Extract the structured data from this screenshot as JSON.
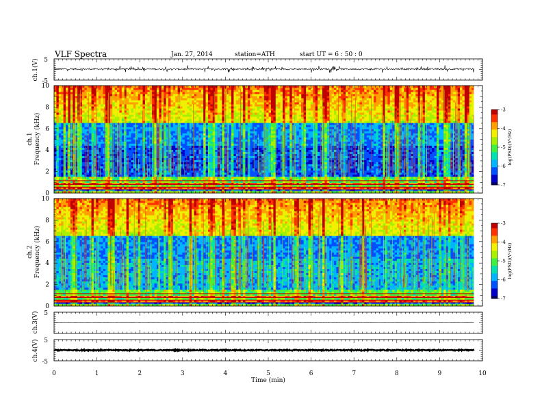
{
  "header": {
    "title": "VLF  Spectra",
    "date": "Jan. 27, 2014",
    "station": "station=ATH",
    "start": "start  UT =   6  : 50 : 0"
  },
  "chart_data": {
    "type": "heatmap",
    "xlabel": "Time  (min)",
    "xlim": [
      0,
      10
    ],
    "x_ticks": [
      "0",
      "1",
      "2",
      "3",
      "4",
      "5",
      "6",
      "7",
      "8",
      "9",
      "10"
    ],
    "data_end_min": 9.8,
    "panels": [
      {
        "id": "ch1-waveform",
        "type": "line",
        "ylabel": "ch.1(V)",
        "ylim": [
          -5,
          5
        ],
        "y_ticks": [
          "5",
          "-5"
        ],
        "baseline_v": 0.2,
        "noise_amplitude_v": 0.35,
        "spike_amplitude_v": 1.6
      },
      {
        "id": "ch1-spectrogram",
        "type": "heatmap",
        "ylabel": "ch.1\nFrequency  (kHz)",
        "ylim": [
          0,
          10
        ],
        "y_ticks": [
          "0",
          "2",
          "4",
          "6",
          "8",
          "10"
        ],
        "colorbar": {
          "label": "log(PSD)(V²/Hz)",
          "range": [
            -7,
            -3
          ],
          "ticks": [
            "-3",
            "-4",
            "-5",
            "-6",
            "-7"
          ]
        }
      },
      {
        "id": "ch2-spectrogram",
        "type": "heatmap",
        "ylabel": "ch.2\nFrequency  (kHz)",
        "ylim": [
          0,
          10
        ],
        "y_ticks": [
          "0",
          "2",
          "4",
          "6",
          "8",
          "10"
        ],
        "colorbar": {
          "label": "log(PSD)(V²/Hz)",
          "range": [
            -7,
            -3
          ],
          "ticks": [
            "-3",
            "-4",
            "-5",
            "-6",
            "-7"
          ]
        }
      },
      {
        "id": "ch3-waveform",
        "type": "line",
        "ylabel": "ch.3(V)",
        "ylim": [
          -5,
          5
        ],
        "y_ticks": [
          "5"
        ],
        "baseline_v": 0.0,
        "noise_amplitude_v": 0.03
      },
      {
        "id": "ch4-waveform",
        "type": "line",
        "ylabel": "ch.4(V)",
        "ylim": [
          -5,
          5
        ],
        "y_ticks": [
          "5",
          "-5"
        ],
        "baseline_v": 0.0,
        "noise_amplitude_v": 0.25
      }
    ],
    "colormap": [
      "#000060",
      "#0000c8",
      "#0050ff",
      "#00b4ff",
      "#00e0b0",
      "#40f040",
      "#a8f000",
      "#f0f000",
      "#ffa000",
      "#ff3000",
      "#c00000"
    ]
  }
}
